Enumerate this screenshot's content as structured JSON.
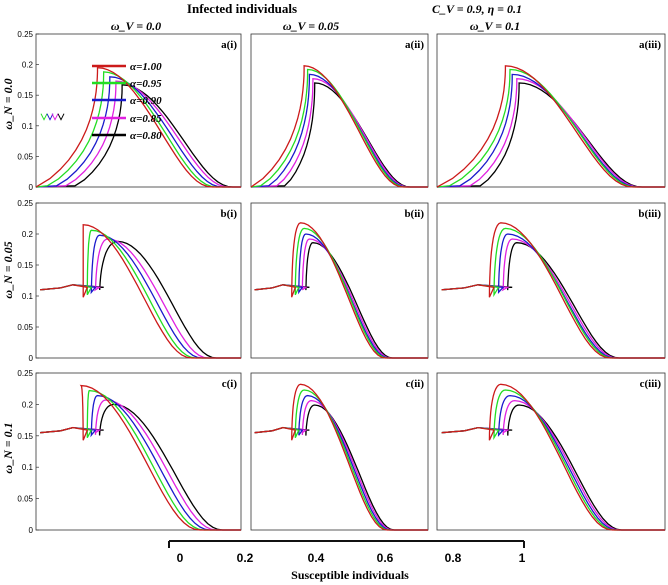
{
  "chart_data": {
    "type": "line",
    "title": "Infected individuals",
    "parameters_label": "C_V = 0.9, η = 0.1",
    "xlabel": "Susceptible individuals",
    "ylabel": "",
    "xlim": [
      0,
      1
    ],
    "x_ticks": [
      "0",
      "0.2",
      "0.4",
      "0.6",
      "0.8",
      "1"
    ],
    "column_titles": [
      "ω_V = 0.0",
      "ω_V = 0.05",
      "ω_V = 0.1"
    ],
    "row_titles": [
      "ω_N = 0.0",
      "ω_N = 0.05",
      "ω_N = 0.1"
    ],
    "y_ticks": [
      "0",
      "0.05",
      "0.1",
      "0.15",
      "0.2",
      "0.25"
    ],
    "ylim": [
      0,
      0.25
    ],
    "legend": [
      {
        "label": "α=1.00",
        "color": "#cc1a1a"
      },
      {
        "label": "α=0.95",
        "color": "#22dd22"
      },
      {
        "label": "α=0.90",
        "color": "#1a1acc"
      },
      {
        "label": "α=0.85",
        "color": "#e020e0"
      },
      {
        "label": "α=0.80",
        "color": "#000000"
      }
    ],
    "panels": [
      {
        "label": "a(i)",
        "start_y": 0.0,
        "peak_x": [
          0.3,
          0.33,
          0.36,
          0.39,
          0.42
        ],
        "peak_y": [
          0.195,
          0.188,
          0.18,
          0.173,
          0.167
        ],
        "end_x": [
          0.86,
          0.88,
          0.91,
          0.94,
          0.96
        ],
        "hook": 0
      },
      {
        "label": "a(ii)",
        "start_y": 0.0,
        "peak_x": [
          0.3,
          0.32,
          0.33,
          0.35,
          0.36
        ],
        "peak_y": [
          0.198,
          0.192,
          0.184,
          0.177,
          0.17
        ],
        "end_x": [
          0.86,
          0.87,
          0.88,
          0.89,
          0.9
        ],
        "hook": 0
      },
      {
        "label": "a(iii)",
        "start_y": 0.0,
        "peak_x": [
          0.3,
          0.32,
          0.33,
          0.35,
          0.36
        ],
        "peak_y": [
          0.198,
          0.192,
          0.184,
          0.177,
          0.17
        ],
        "end_x": [
          0.86,
          0.87,
          0.88,
          0.89,
          0.9
        ],
        "hook": 0
      },
      {
        "label": "b(i)",
        "start_y": 0.11,
        "peak_x": [
          0.23,
          0.27,
          0.31,
          0.35,
          0.4
        ],
        "peak_y": [
          0.215,
          0.206,
          0.198,
          0.192,
          0.188
        ],
        "end_x": [
          0.76,
          0.78,
          0.81,
          0.84,
          0.88
        ],
        "hook": 1
      },
      {
        "label": "b(ii)",
        "start_y": 0.11,
        "peak_x": [
          0.28,
          0.3,
          0.31,
          0.33,
          0.35
        ],
        "peak_y": [
          0.218,
          0.209,
          0.2,
          0.192,
          0.186
        ],
        "end_x": [
          0.76,
          0.77,
          0.78,
          0.79,
          0.8
        ],
        "hook": 1
      },
      {
        "label": "b(iii)",
        "start_y": 0.11,
        "peak_x": [
          0.28,
          0.3,
          0.31,
          0.33,
          0.35
        ],
        "peak_y": [
          0.218,
          0.209,
          0.2,
          0.192,
          0.186
        ],
        "end_x": [
          0.76,
          0.77,
          0.78,
          0.79,
          0.8
        ],
        "hook": 1
      },
      {
        "label": "c(i)",
        "start_y": 0.155,
        "peak_x": [
          0.22,
          0.26,
          0.3,
          0.34,
          0.38
        ],
        "peak_y": [
          0.23,
          0.222,
          0.214,
          0.207,
          0.2
        ],
        "end_x": [
          0.8,
          0.82,
          0.85,
          0.88,
          0.91
        ],
        "hook": 1
      },
      {
        "label": "c(ii)",
        "start_y": 0.155,
        "peak_x": [
          0.28,
          0.3,
          0.32,
          0.34,
          0.36
        ],
        "peak_y": [
          0.232,
          0.223,
          0.214,
          0.206,
          0.199
        ],
        "end_x": [
          0.77,
          0.78,
          0.79,
          0.8,
          0.81
        ],
        "hook": 1
      },
      {
        "label": "c(iii)",
        "start_y": 0.155,
        "peak_x": [
          0.28,
          0.3,
          0.32,
          0.34,
          0.36
        ],
        "peak_y": [
          0.232,
          0.223,
          0.214,
          0.206,
          0.199
        ],
        "end_x": [
          0.77,
          0.78,
          0.79,
          0.8,
          0.81
        ],
        "hook": 1
      }
    ]
  }
}
